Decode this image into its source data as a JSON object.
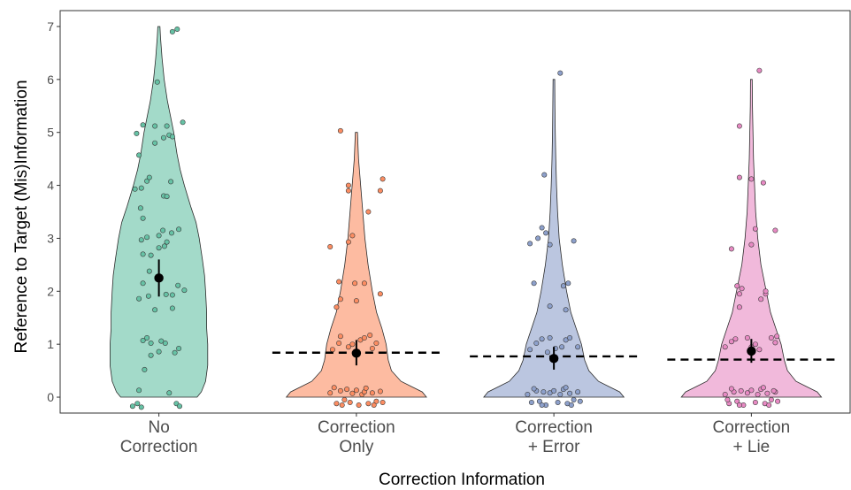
{
  "chart_data": {
    "type": "violin",
    "xlabel": "Correction Information",
    "ylabel": "Reference to Target (Mis)Information",
    "ylim": [
      -0.3,
      7.3
    ],
    "yticks": [
      0,
      1,
      2,
      3,
      4,
      5,
      6,
      7
    ],
    "grid": false,
    "categories": [
      {
        "label_lines": [
          "No",
          "Correction"
        ],
        "color": "#66c2a5",
        "max": 7,
        "mean": 2.25,
        "ci": [
          1.9,
          2.6
        ],
        "reference_line": null,
        "points": [
          [
            -0.33,
            -0.17
          ],
          [
            -0.27,
            -0.12
          ],
          [
            -0.22,
            -0.19
          ],
          [
            0.22,
            -0.12
          ],
          [
            0.26,
            -0.17
          ],
          [
            -0.25,
            0.13
          ],
          [
            0.13,
            0.08
          ],
          [
            -0.18,
            0.52
          ],
          [
            -0.1,
            0.79
          ],
          [
            0.0,
            0.86
          ],
          [
            0.2,
            0.84
          ],
          [
            0.25,
            0.92
          ],
          [
            -0.1,
            1.02
          ],
          [
            0.08,
            1.02
          ],
          [
            -0.2,
            1.07
          ],
          [
            -0.15,
            1.12
          ],
          [
            0.03,
            1.06
          ],
          [
            -0.05,
            1.65
          ],
          [
            0.17,
            1.68
          ],
          [
            -0.13,
            1.91
          ],
          [
            0.09,
            1.94
          ],
          [
            0.17,
            1.93
          ],
          [
            0.32,
            2.02
          ],
          [
            -0.25,
            1.86
          ],
          [
            -0.2,
            2.15
          ],
          [
            -0.12,
            2.38
          ],
          [
            0.24,
            2.11
          ],
          [
            -0.2,
            2.7
          ],
          [
            -0.1,
            2.68
          ],
          [
            0.0,
            2.82
          ],
          [
            0.07,
            2.85
          ],
          [
            0.1,
            2.93
          ],
          [
            -0.22,
            2.97
          ],
          [
            -0.15,
            3.02
          ],
          [
            0.0,
            3.05
          ],
          [
            0.05,
            3.15
          ],
          [
            0.25,
            3.17
          ],
          [
            0.16,
            3.1
          ],
          [
            -0.2,
            3.38
          ],
          [
            -0.23,
            3.57
          ],
          [
            -0.3,
            3.93
          ],
          [
            -0.22,
            3.95
          ],
          [
            -0.15,
            4.08
          ],
          [
            -0.12,
            4.15
          ],
          [
            0.06,
            3.8
          ],
          [
            0.1,
            3.79
          ],
          [
            0.15,
            4.07
          ],
          [
            -0.25,
            4.57
          ],
          [
            -0.05,
            4.8
          ],
          [
            -0.28,
            4.98
          ],
          [
            0.06,
            4.9
          ],
          [
            0.13,
            4.95
          ],
          [
            0.17,
            4.92
          ],
          [
            -0.2,
            5.14
          ],
          [
            0.1,
            5.12
          ],
          [
            -0.05,
            5.12
          ],
          [
            0.3,
            5.19
          ],
          [
            -0.02,
            5.95
          ],
          [
            0.17,
            6.9
          ],
          [
            0.23,
            6.95
          ]
        ],
        "density": [
          [
            0,
            0.36
          ],
          [
            0.1,
            0.4
          ],
          [
            0.3,
            0.44
          ],
          [
            0.6,
            0.46
          ],
          [
            1,
            0.46
          ],
          [
            1.3,
            0.45
          ],
          [
            1.6,
            0.45
          ],
          [
            2,
            0.44
          ],
          [
            2.3,
            0.43
          ],
          [
            2.6,
            0.41
          ],
          [
            3,
            0.38
          ],
          [
            3.3,
            0.35
          ],
          [
            3.6,
            0.3
          ],
          [
            4,
            0.24
          ],
          [
            4.3,
            0.2
          ],
          [
            4.6,
            0.17
          ],
          [
            5,
            0.14
          ],
          [
            5.3,
            0.11
          ],
          [
            5.6,
            0.08
          ],
          [
            6,
            0.05
          ],
          [
            6.4,
            0.03
          ],
          [
            6.8,
            0.015
          ],
          [
            7,
            0.01
          ]
        ]
      },
      {
        "label_lines": [
          "Correction",
          "Only"
        ],
        "color": "#fc8d62",
        "max": 5,
        "mean": 0.83,
        "ci": [
          0.6,
          1.08
        ],
        "reference_line": 0.84,
        "points": [
          [
            -0.33,
            0.08
          ],
          [
            -0.25,
            -0.12
          ],
          [
            -0.2,
            0.12
          ],
          [
            -0.15,
            -0.05
          ],
          [
            -0.12,
            0.15
          ],
          [
            -0.08,
            -0.1
          ],
          [
            -0.05,
            0.07
          ],
          [
            0.0,
            0.13
          ],
          [
            0.03,
            -0.15
          ],
          [
            0.07,
            0.05
          ],
          [
            0.1,
            0.1
          ],
          [
            0.15,
            -0.12
          ],
          [
            0.2,
            0.08
          ],
          [
            0.25,
            -0.08
          ],
          [
            0.3,
            0.11
          ],
          [
            0.33,
            -0.1
          ],
          [
            -0.28,
            0.18
          ],
          [
            0.12,
            0.17
          ],
          [
            -0.18,
            -0.15
          ],
          [
            0.22,
            -0.15
          ],
          [
            -0.3,
            0.9
          ],
          [
            -0.22,
            1.02
          ],
          [
            -0.2,
            1.15
          ],
          [
            -0.1,
            0.95
          ],
          [
            0.05,
            1.08
          ],
          [
            0.1,
            1.12
          ],
          [
            0.17,
            1.17
          ],
          [
            0.25,
            1.02
          ],
          [
            -0.05,
            1.0
          ],
          [
            0.2,
            0.92
          ],
          [
            -0.25,
            1.7
          ],
          [
            -0.2,
            1.85
          ],
          [
            -0.22,
            2.18
          ],
          [
            -0.02,
            2.15
          ],
          [
            0.0,
            1.82
          ],
          [
            0.1,
            2.15
          ],
          [
            0.3,
            1.95
          ],
          [
            -0.33,
            2.84
          ],
          [
            -0.1,
            2.93
          ],
          [
            -0.05,
            3.05
          ],
          [
            -0.1,
            3.9
          ],
          [
            -0.1,
            4.0
          ],
          [
            0.15,
            3.5
          ],
          [
            0.3,
            3.9
          ],
          [
            0.33,
            4.12
          ],
          [
            -0.2,
            5.03
          ]
        ],
        "density": [
          [
            0,
            0.66
          ],
          [
            0.1,
            0.62
          ],
          [
            0.2,
            0.52
          ],
          [
            0.3,
            0.42
          ],
          [
            0.5,
            0.33
          ],
          [
            0.7,
            0.3
          ],
          [
            1,
            0.28
          ],
          [
            1.3,
            0.24
          ],
          [
            1.6,
            0.19
          ],
          [
            2,
            0.15
          ],
          [
            2.5,
            0.11
          ],
          [
            3,
            0.08
          ],
          [
            3.5,
            0.06
          ],
          [
            4,
            0.04
          ],
          [
            4.5,
            0.02
          ],
          [
            5,
            0.01
          ]
        ]
      },
      {
        "label_lines": [
          "Correction",
          "+ Error"
        ],
        "color": "#8da0cb",
        "max": 6,
        "mean": 0.73,
        "ci": [
          0.52,
          0.95
        ],
        "reference_line": 0.77,
        "points": [
          [
            -0.33,
            0.05
          ],
          [
            -0.28,
            -0.1
          ],
          [
            -0.22,
            0.12
          ],
          [
            -0.18,
            -0.08
          ],
          [
            -0.13,
            0.1
          ],
          [
            -0.1,
            -0.15
          ],
          [
            -0.05,
            0.08
          ],
          [
            0.0,
            0.12
          ],
          [
            0.05,
            -0.1
          ],
          [
            0.08,
            0.05
          ],
          [
            0.12,
            0.15
          ],
          [
            0.17,
            -0.12
          ],
          [
            0.2,
            0.07
          ],
          [
            0.25,
            -0.05
          ],
          [
            0.3,
            0.1
          ],
          [
            0.33,
            -0.08
          ],
          [
            -0.25,
            0.16
          ],
          [
            0.15,
            0.18
          ],
          [
            -0.15,
            -0.15
          ],
          [
            0.22,
            -0.15
          ],
          [
            -0.3,
            0.9
          ],
          [
            -0.22,
            1.02
          ],
          [
            -0.15,
            1.1
          ],
          [
            -0.05,
            1.12
          ],
          [
            0.02,
            0.92
          ],
          [
            0.1,
            0.95
          ],
          [
            0.15,
            1.08
          ],
          [
            0.2,
            1.12
          ],
          [
            0.3,
            0.95
          ],
          [
            -0.08,
            0.85
          ],
          [
            -0.25,
            2.15
          ],
          [
            -0.05,
            1.72
          ],
          [
            0.15,
            1.65
          ],
          [
            0.18,
            2.15
          ],
          [
            0.12,
            2.1
          ],
          [
            -0.3,
            2.9
          ],
          [
            -0.05,
            2.88
          ],
          [
            0.25,
            2.95
          ],
          [
            -0.2,
            3.0
          ],
          [
            -0.15,
            3.2
          ],
          [
            -0.1,
            3.1
          ],
          [
            -0.12,
            4.2
          ],
          [
            0.08,
            6.12
          ]
        ],
        "density": [
          [
            0,
            0.66
          ],
          [
            0.1,
            0.62
          ],
          [
            0.2,
            0.52
          ],
          [
            0.3,
            0.42
          ],
          [
            0.5,
            0.33
          ],
          [
            0.7,
            0.29
          ],
          [
            1,
            0.26
          ],
          [
            1.3,
            0.21
          ],
          [
            1.6,
            0.16
          ],
          [
            2,
            0.12
          ],
          [
            2.5,
            0.08
          ],
          [
            3,
            0.05
          ],
          [
            3.5,
            0.035
          ],
          [
            4,
            0.025
          ],
          [
            4.5,
            0.018
          ],
          [
            5,
            0.013
          ],
          [
            5.5,
            0.01
          ],
          [
            6,
            0.008
          ]
        ]
      },
      {
        "label_lines": [
          "Correction",
          "+ Lie"
        ],
        "color": "#e78ac3",
        "max": 6,
        "mean": 0.87,
        "ci": [
          0.65,
          1.1
        ],
        "reference_line": 0.71,
        "points": [
          [
            -0.33,
            0.05
          ],
          [
            -0.28,
            -0.12
          ],
          [
            -0.22,
            0.1
          ],
          [
            -0.18,
            -0.08
          ],
          [
            -0.13,
            0.12
          ],
          [
            -0.1,
            -0.15
          ],
          [
            -0.05,
            0.08
          ],
          [
            0.0,
            0.13
          ],
          [
            0.05,
            -0.1
          ],
          [
            0.08,
            0.05
          ],
          [
            0.12,
            0.15
          ],
          [
            0.17,
            -0.12
          ],
          [
            0.2,
            0.07
          ],
          [
            0.25,
            -0.05
          ],
          [
            0.3,
            0.1
          ],
          [
            0.33,
            -0.08
          ],
          [
            -0.25,
            0.16
          ],
          [
            0.15,
            0.18
          ],
          [
            -0.15,
            -0.15
          ],
          [
            0.22,
            -0.15
          ],
          [
            0.28,
            0.12
          ],
          [
            -0.3,
            -0.05
          ],
          [
            -0.33,
            0.95
          ],
          [
            -0.25,
            1.05
          ],
          [
            -0.2,
            1.1
          ],
          [
            -0.05,
            1.12
          ],
          [
            0.0,
            0.95
          ],
          [
            0.05,
            1.0
          ],
          [
            0.1,
            0.9
          ],
          [
            0.25,
            1.12
          ],
          [
            0.32,
            1.15
          ],
          [
            0.3,
            1.03
          ],
          [
            -0.15,
            1.7
          ],
          [
            -0.12,
            2.05
          ],
          [
            -0.18,
            2.1
          ],
          [
            -0.15,
            1.95
          ],
          [
            0.12,
            1.85
          ],
          [
            0.18,
            1.95
          ],
          [
            0.18,
            2.0
          ],
          [
            -0.25,
            2.8
          ],
          [
            0.0,
            2.88
          ],
          [
            0.05,
            3.18
          ],
          [
            0.3,
            3.15
          ],
          [
            -0.15,
            4.15
          ],
          [
            0.0,
            4.12
          ],
          [
            0.15,
            4.05
          ],
          [
            -0.15,
            5.12
          ],
          [
            0.1,
            6.17
          ]
        ],
        "density": [
          [
            0,
            0.66
          ],
          [
            0.1,
            0.62
          ],
          [
            0.2,
            0.52
          ],
          [
            0.3,
            0.42
          ],
          [
            0.5,
            0.34
          ],
          [
            0.7,
            0.31
          ],
          [
            1,
            0.28
          ],
          [
            1.3,
            0.23
          ],
          [
            1.6,
            0.18
          ],
          [
            2,
            0.14
          ],
          [
            2.5,
            0.09
          ],
          [
            3,
            0.06
          ],
          [
            3.5,
            0.04
          ],
          [
            4,
            0.03
          ],
          [
            4.5,
            0.02
          ],
          [
            5,
            0.015
          ],
          [
            5.5,
            0.01
          ],
          [
            6,
            0.008
          ]
        ]
      }
    ]
  }
}
